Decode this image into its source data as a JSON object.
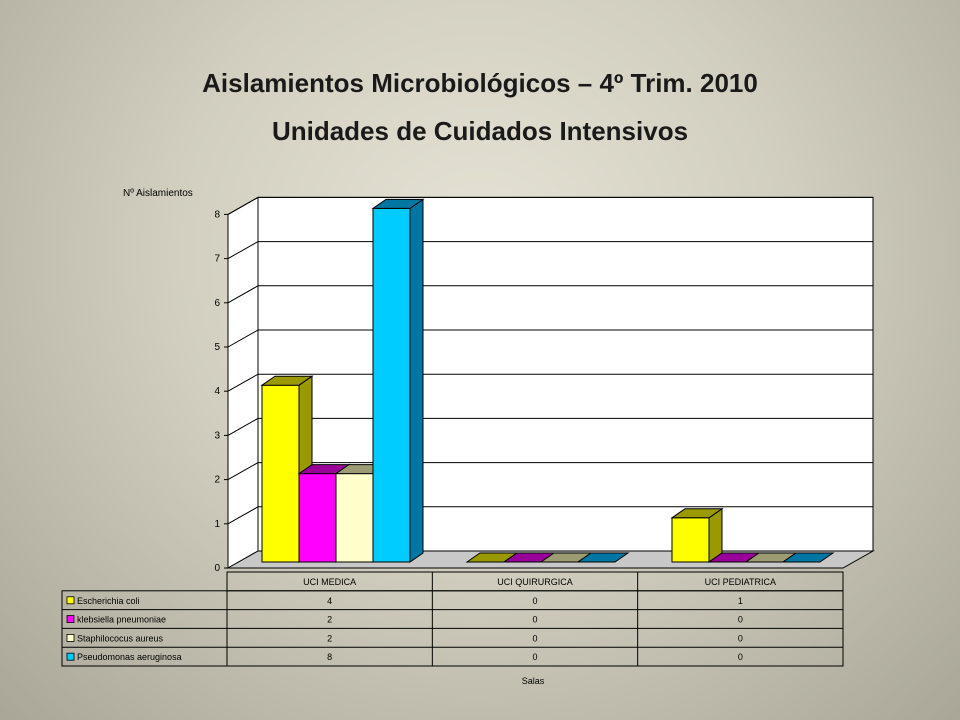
{
  "page": {
    "title_line1": "Aislamientos Microbiológicos – 4º Trim. 2010",
    "title_line2": "Unidades de Cuidados Intensivos"
  },
  "chart_data": {
    "type": "bar",
    "title": "Aislamientos Microbiológicos – 4º Trim. 2010\nUnidades de Cuidados Intensivos",
    "xlabel": "Salas",
    "ylabel": "Nº Aislamientos",
    "ylim": [
      0,
      8
    ],
    "yticks": [
      0,
      1,
      2,
      3,
      4,
      5,
      6,
      7,
      8
    ],
    "grid": true,
    "three_d": true,
    "legend": "data-table-below",
    "categories": [
      "UCI MEDICA",
      "UCI QUIRURGICA",
      "UCI PEDIATRICA"
    ],
    "series": [
      {
        "name": "Escherichia coli",
        "values": [
          4,
          0,
          1
        ],
        "color": "#ffff00",
        "side": "#9a9a00",
        "table": [
          "4",
          "0",
          "1"
        ]
      },
      {
        "name": "klebsiella pneumoniae",
        "values": [
          2,
          0,
          0
        ],
        "color": "#ff00ff",
        "side": "#990099",
        "table": [
          "2",
          "0",
          "0"
        ]
      },
      {
        "name": "Staphilococus aureus",
        "values": [
          2,
          0,
          0
        ],
        "color": "#ffffcc",
        "side": "#9c9c74",
        "table": [
          "2",
          "0",
          "0"
        ]
      },
      {
        "name": "Pseudomonas aeruginosa",
        "values": [
          8,
          0,
          0
        ],
        "color": "#00ccff",
        "side": "#0077a3",
        "table": [
          "8",
          "0",
          "0"
        ]
      }
    ]
  }
}
